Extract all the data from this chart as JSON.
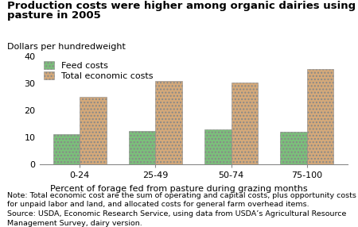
{
  "title_line1": "Production costs were higher among organic dairies using the most",
  "title_line2": "pasture in 2005",
  "ylabel": "Dollars per hundredweight",
  "xlabel": "Percent of forage fed from pasture during grazing months",
  "categories": [
    "0-24",
    "25-49",
    "50-74",
    "75-100"
  ],
  "feed_costs": [
    11.2,
    12.6,
    13.0,
    12.3
  ],
  "total_costs": [
    25.0,
    31.0,
    30.5,
    35.5
  ],
  "feed_color": "#7bbf7b",
  "total_color": "#d4a97a",
  "ylim": [
    0,
    40
  ],
  "yticks": [
    0,
    10,
    20,
    30,
    40
  ],
  "bar_width": 0.35,
  "legend_labels": [
    "Feed costs",
    "Total economic costs"
  ],
  "note_text": "Note: Total economic cost are the sum of operating and capital costs, plus opportunity costs\nfor unpaid labor and land, and allocated costs for general farm overhead items.\nSource: USDA, Economic Research Service, using data from USDA’s Agricultural Resource\nManagement Survey, dairy version.",
  "background_color": "#ffffff",
  "title_fontsize": 9.5,
  "axis_label_fontsize": 8,
  "tick_fontsize": 8,
  "note_fontsize": 6.8,
  "legend_fontsize": 8
}
